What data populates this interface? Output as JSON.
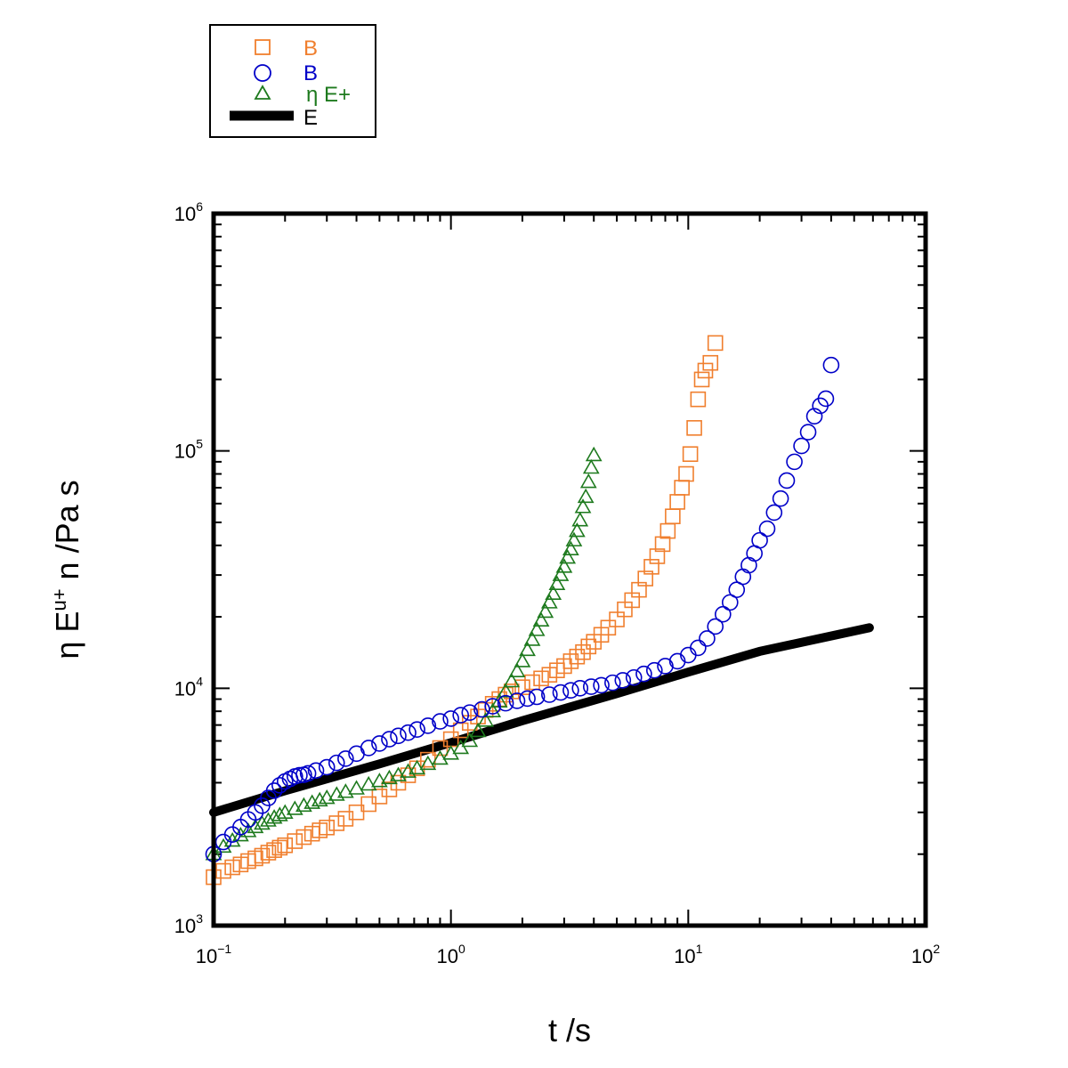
{
  "chart_data": {
    "type": "scatter",
    "x_scale": "log",
    "y_scale": "log",
    "xlim": [
      0.1,
      100
    ],
    "ylim": [
      1000,
      1000000
    ],
    "xlabel": "t /s",
    "ylabel": {
      "main": "η E",
      "sup": "u+",
      "tail": " n /Pa s"
    },
    "x_ticks": [
      {
        "base": "10",
        "exp": "−1",
        "value": 0.1
      },
      {
        "base": "10",
        "exp": "0",
        "value": 1
      },
      {
        "base": "10",
        "exp": "1",
        "value": 10
      },
      {
        "base": "10",
        "exp": "2",
        "value": 100
      }
    ],
    "y_ticks": [
      {
        "base": "10",
        "exp": "3",
        "value": 1000
      },
      {
        "base": "10",
        "exp": "4",
        "value": 10000
      },
      {
        "base": "10",
        "exp": "5",
        "value": 100000
      },
      {
        "base": "10",
        "exp": "6",
        "value": 1000000
      }
    ],
    "legend_position": "above plot, left",
    "series": [
      {
        "name": "B",
        "marker": "square",
        "color": "#f07f2e",
        "points": [
          [
            0.1,
            1600
          ],
          [
            0.11,
            1700
          ],
          [
            0.12,
            1760
          ],
          [
            0.13,
            1810
          ],
          [
            0.14,
            1870
          ],
          [
            0.15,
            1920
          ],
          [
            0.16,
            1970
          ],
          [
            0.17,
            2030
          ],
          [
            0.18,
            2080
          ],
          [
            0.19,
            2130
          ],
          [
            0.2,
            2180
          ],
          [
            0.22,
            2270
          ],
          [
            0.24,
            2360
          ],
          [
            0.26,
            2440
          ],
          [
            0.28,
            2520
          ],
          [
            0.3,
            2590
          ],
          [
            0.33,
            2700
          ],
          [
            0.36,
            2820
          ],
          [
            0.4,
            3000
          ],
          [
            0.45,
            3250
          ],
          [
            0.5,
            3500
          ],
          [
            0.55,
            3750
          ],
          [
            0.6,
            4000
          ],
          [
            0.66,
            4300
          ],
          [
            0.72,
            4600
          ],
          [
            0.8,
            5000
          ],
          [
            0.9,
            5600
          ],
          [
            1.0,
            6100
          ],
          [
            1.1,
            6650
          ],
          [
            1.2,
            7150
          ],
          [
            1.3,
            7600
          ],
          [
            1.4,
            8100
          ],
          [
            1.5,
            8600
          ],
          [
            1.6,
            9000
          ],
          [
            1.7,
            9400
          ],
          [
            1.8,
            9700
          ],
          [
            2.0,
            10100
          ],
          [
            2.2,
            10600
          ],
          [
            2.4,
            11000
          ],
          [
            2.6,
            11400
          ],
          [
            2.8,
            11900
          ],
          [
            3.0,
            12400
          ],
          [
            3.2,
            13000
          ],
          [
            3.4,
            13600
          ],
          [
            3.6,
            14200
          ],
          [
            3.8,
            15000
          ],
          [
            4.0,
            15700
          ],
          [
            4.3,
            16800
          ],
          [
            4.6,
            18000
          ],
          [
            5.0,
            19500
          ],
          [
            5.4,
            21500
          ],
          [
            5.8,
            23500
          ],
          [
            6.2,
            26000
          ],
          [
            6.6,
            29000
          ],
          [
            7.0,
            32500
          ],
          [
            7.4,
            36000
          ],
          [
            7.8,
            40500
          ],
          [
            8.2,
            46000
          ],
          [
            8.6,
            53000
          ],
          [
            9.0,
            61000
          ],
          [
            9.4,
            70000
          ],
          [
            9.8,
            80000
          ],
          [
            10.2,
            97000
          ],
          [
            10.6,
            125000
          ],
          [
            11.0,
            165000
          ],
          [
            11.4,
            200000
          ],
          [
            11.8,
            218000
          ],
          [
            12.4,
            235000
          ],
          [
            13.0,
            285000
          ]
        ]
      },
      {
        "name": "B",
        "marker": "circle",
        "color": "#0000c8",
        "points": [
          [
            0.1,
            2000
          ],
          [
            0.11,
            2250
          ],
          [
            0.12,
            2420
          ],
          [
            0.13,
            2600
          ],
          [
            0.14,
            2800
          ],
          [
            0.15,
            3000
          ],
          [
            0.16,
            3200
          ],
          [
            0.17,
            3450
          ],
          [
            0.18,
            3700
          ],
          [
            0.19,
            3900
          ],
          [
            0.2,
            4050
          ],
          [
            0.21,
            4150
          ],
          [
            0.22,
            4250
          ],
          [
            0.23,
            4300
          ],
          [
            0.24,
            4320
          ],
          [
            0.25,
            4380
          ],
          [
            0.27,
            4500
          ],
          [
            0.3,
            4650
          ],
          [
            0.33,
            4850
          ],
          [
            0.36,
            5050
          ],
          [
            0.4,
            5300
          ],
          [
            0.45,
            5600
          ],
          [
            0.5,
            5850
          ],
          [
            0.55,
            6100
          ],
          [
            0.6,
            6300
          ],
          [
            0.66,
            6500
          ],
          [
            0.72,
            6700
          ],
          [
            0.8,
            6950
          ],
          [
            0.9,
            7250
          ],
          [
            1.0,
            7450
          ],
          [
            1.1,
            7700
          ],
          [
            1.2,
            7900
          ],
          [
            1.35,
            8150
          ],
          [
            1.5,
            8400
          ],
          [
            1.7,
            8650
          ],
          [
            1.9,
            8850
          ],
          [
            2.1,
            9050
          ],
          [
            2.3,
            9200
          ],
          [
            2.6,
            9400
          ],
          [
            2.9,
            9600
          ],
          [
            3.2,
            9800
          ],
          [
            3.5,
            10000
          ],
          [
            3.9,
            10150
          ],
          [
            4.3,
            10300
          ],
          [
            4.8,
            10550
          ],
          [
            5.3,
            10800
          ],
          [
            5.9,
            11100
          ],
          [
            6.5,
            11500
          ],
          [
            7.2,
            11900
          ],
          [
            8.0,
            12400
          ],
          [
            9.0,
            13000
          ],
          [
            10.0,
            13800
          ],
          [
            11.0,
            14800
          ],
          [
            12.0,
            16200
          ],
          [
            13.0,
            18200
          ],
          [
            14.0,
            20500
          ],
          [
            15.0,
            23000
          ],
          [
            16.0,
            26000
          ],
          [
            17.0,
            29500
          ],
          [
            18.0,
            33000
          ],
          [
            19.0,
            37000
          ],
          [
            20.0,
            42000
          ],
          [
            21.5,
            47000
          ],
          [
            23.0,
            55000
          ],
          [
            24.5,
            63000
          ],
          [
            26.0,
            75000
          ],
          [
            28.0,
            90000
          ],
          [
            30.0,
            105000
          ],
          [
            32.0,
            120000
          ],
          [
            34.0,
            140000
          ],
          [
            36.0,
            155000
          ],
          [
            38.0,
            166000
          ],
          [
            40.0,
            230000
          ]
        ]
      },
      {
        "name": "η E+",
        "marker": "triangle",
        "color": "#1e7a1e",
        "points": [
          [
            0.1,
            2000
          ],
          [
            0.11,
            2150
          ],
          [
            0.12,
            2280
          ],
          [
            0.13,
            2400
          ],
          [
            0.14,
            2500
          ],
          [
            0.15,
            2600
          ],
          [
            0.16,
            2690
          ],
          [
            0.17,
            2770
          ],
          [
            0.18,
            2850
          ],
          [
            0.19,
            2920
          ],
          [
            0.2,
            2990
          ],
          [
            0.22,
            3100
          ],
          [
            0.24,
            3200
          ],
          [
            0.26,
            3290
          ],
          [
            0.28,
            3370
          ],
          [
            0.3,
            3450
          ],
          [
            0.33,
            3560
          ],
          [
            0.36,
            3660
          ],
          [
            0.4,
            3780
          ],
          [
            0.45,
            3930
          ],
          [
            0.5,
            4060
          ],
          [
            0.55,
            4180
          ],
          [
            0.6,
            4300
          ],
          [
            0.66,
            4450
          ],
          [
            0.72,
            4600
          ],
          [
            0.8,
            4800
          ],
          [
            0.9,
            5050
          ],
          [
            1.0,
            5300
          ],
          [
            1.1,
            5600
          ],
          [
            1.2,
            6000
          ],
          [
            1.3,
            6600
          ],
          [
            1.4,
            7300
          ],
          [
            1.5,
            8000
          ],
          [
            1.6,
            8800
          ],
          [
            1.7,
            9700
          ],
          [
            1.8,
            10700
          ],
          [
            1.9,
            11800
          ],
          [
            2.0,
            13000
          ],
          [
            2.1,
            14500
          ],
          [
            2.2,
            16000
          ],
          [
            2.3,
            17600
          ],
          [
            2.4,
            19300
          ],
          [
            2.5,
            21000
          ],
          [
            2.6,
            23000
          ],
          [
            2.7,
            25000
          ],
          [
            2.8,
            27500
          ],
          [
            2.9,
            30000
          ],
          [
            3.0,
            32500
          ],
          [
            3.1,
            35500
          ],
          [
            3.2,
            38500
          ],
          [
            3.3,
            42000
          ],
          [
            3.4,
            46000
          ],
          [
            3.5,
            51000
          ],
          [
            3.6,
            58000
          ],
          [
            3.7,
            64000
          ],
          [
            3.8,
            74000
          ],
          [
            3.9,
            85000
          ],
          [
            4.0,
            96000
          ]
        ]
      },
      {
        "name": "E",
        "marker": "line",
        "color": "#000000",
        "points": [
          [
            0.1,
            3000
          ],
          [
            0.2,
            3700
          ],
          [
            0.5,
            4800
          ],
          [
            1.0,
            5900
          ],
          [
            2.0,
            7300
          ],
          [
            5.0,
            9500
          ],
          [
            10.0,
            11700
          ],
          [
            20.0,
            14300
          ],
          [
            58.0,
            18000
          ]
        ]
      }
    ]
  }
}
